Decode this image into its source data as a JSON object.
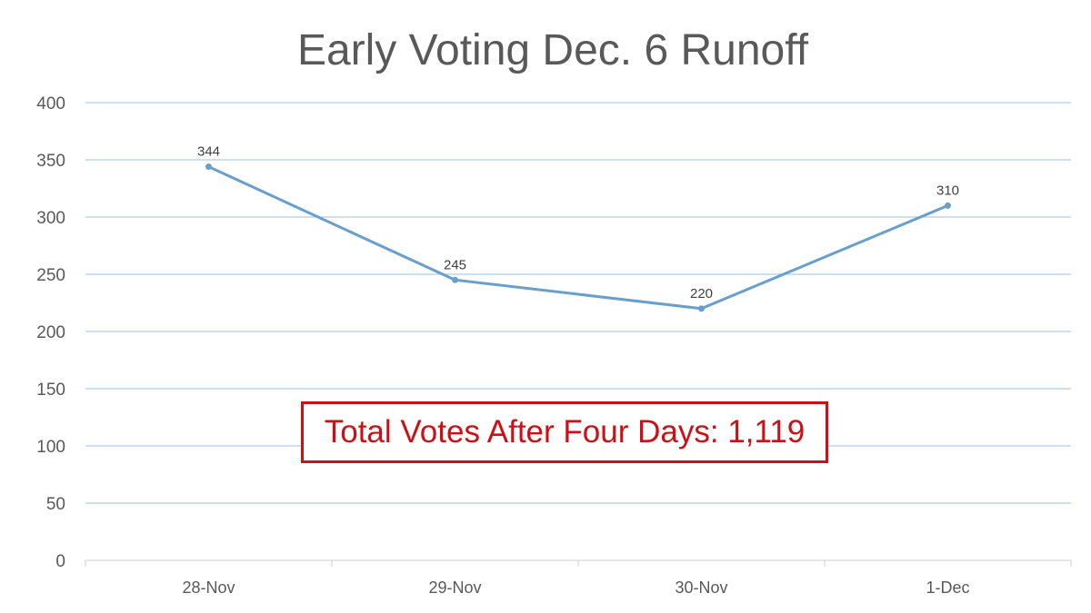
{
  "chart_data": {
    "type": "line",
    "title": "Early Voting Dec. 6 Runoff",
    "categories": [
      "28-Nov",
      "29-Nov",
      "30-Nov",
      "1-Dec"
    ],
    "series": [
      {
        "values": [
          344,
          245,
          220,
          310
        ]
      }
    ],
    "data_labels": [
      "344",
      "245",
      "220",
      "310"
    ],
    "yticks": [
      "0",
      "50",
      "100",
      "150",
      "200",
      "250",
      "300",
      "350",
      "400"
    ],
    "ylim": [
      0,
      400
    ],
    "grid": true,
    "annotation": "Total Votes After Four Days: 1,119",
    "colors": {
      "line": "#6a9fcc",
      "grid": "#9bbfe0",
      "axis_text": "#595959",
      "annotation": "#cc1016"
    }
  }
}
